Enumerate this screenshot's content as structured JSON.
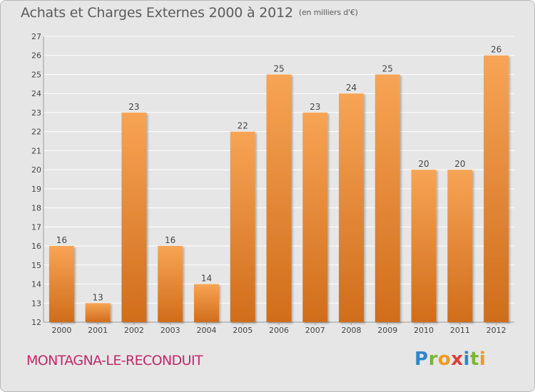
{
  "title": "Achats et Charges Externes 2000 à 2012",
  "unit": "(en milliers d'€)",
  "commune": "MONTAGNA-LE-RECONDUIT",
  "logo": {
    "text": "Proxiti"
  },
  "colors": {
    "bar_light": "#f7a455",
    "bar_dark": "#d06d1b",
    "grid": "#ffffff",
    "commune": "#c0286b"
  },
  "chart_data": {
    "type": "bar",
    "title": "Achats et Charges Externes 2000 à 2012",
    "subtitle": "(en milliers d'€)",
    "categories": [
      "2000",
      "2001",
      "2002",
      "2003",
      "2004",
      "2005",
      "2006",
      "2007",
      "2008",
      "2009",
      "2010",
      "2011",
      "2012"
    ],
    "values": [
      16,
      13,
      23,
      16,
      14,
      22,
      25,
      23,
      24,
      25,
      20,
      20,
      26
    ],
    "ylim": [
      12,
      27
    ],
    "yticks": [
      12,
      13,
      14,
      15,
      16,
      17,
      18,
      19,
      20,
      21,
      22,
      23,
      24,
      25,
      26,
      27
    ],
    "grid": true,
    "data_labels": true
  }
}
